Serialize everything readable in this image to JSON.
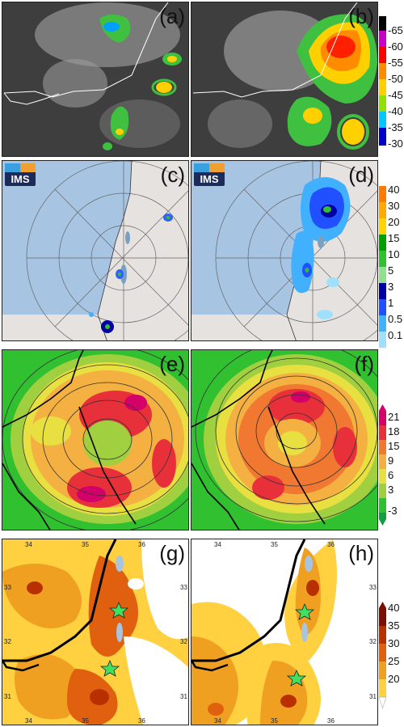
{
  "panels": {
    "a": {
      "label": "(a)"
    },
    "b": {
      "label": "(b)"
    },
    "c": {
      "label": "(c)",
      "logo": "IMS"
    },
    "d": {
      "label": "(d)",
      "logo": "IMS"
    },
    "e": {
      "label": "(e)"
    },
    "f": {
      "label": "(f)"
    },
    "g": {
      "label": "(g)",
      "lon": [
        "34",
        "35",
        "36"
      ],
      "lat": [
        "33",
        "32",
        "31"
      ]
    },
    "h": {
      "label": "(h)",
      "lon": [
        "34",
        "35",
        "36"
      ],
      "lat": [
        "33",
        "32",
        "31"
      ]
    }
  },
  "colorbars": {
    "satellite": {
      "ticks": [
        "-65",
        "-60",
        "-55",
        "-50",
        "-45",
        "-40",
        "-35",
        "-30"
      ],
      "colors": [
        "#000000",
        "#c800c8",
        "#ff0000",
        "#ff8c00",
        "#ffd000",
        "#90e000",
        "#00c8ff",
        "#0000c8",
        "#ffffff"
      ]
    },
    "radar": {
      "ticks": [
        "40",
        "30",
        "20",
        "15",
        "10",
        "5",
        "3",
        "1",
        "0.5",
        "0.1"
      ],
      "colors": [
        "#ff7a00",
        "#ffaa00",
        "#ffd200",
        "#00a000",
        "#30c030",
        "#90e090",
        "#0000a0",
        "#2050ff",
        "#40b0ff",
        "#a0e0ff"
      ]
    },
    "model_ef": {
      "ticks": [
        "21",
        "18",
        "15",
        "9",
        "6",
        "3",
        "-3"
      ],
      "colors": [
        "#d4006a",
        "#e8303a",
        "#f07830",
        "#f4b040",
        "#e8e040",
        "#a0d040",
        "#30c030",
        "#10a040"
      ]
    },
    "model_gh": {
      "ticks": [
        "40",
        "35",
        "30",
        "25",
        "20"
      ],
      "colors": [
        "#7a1000",
        "#b83000",
        "#e06010",
        "#f0a020",
        "#ffd040",
        "#ffffff"
      ]
    }
  }
}
